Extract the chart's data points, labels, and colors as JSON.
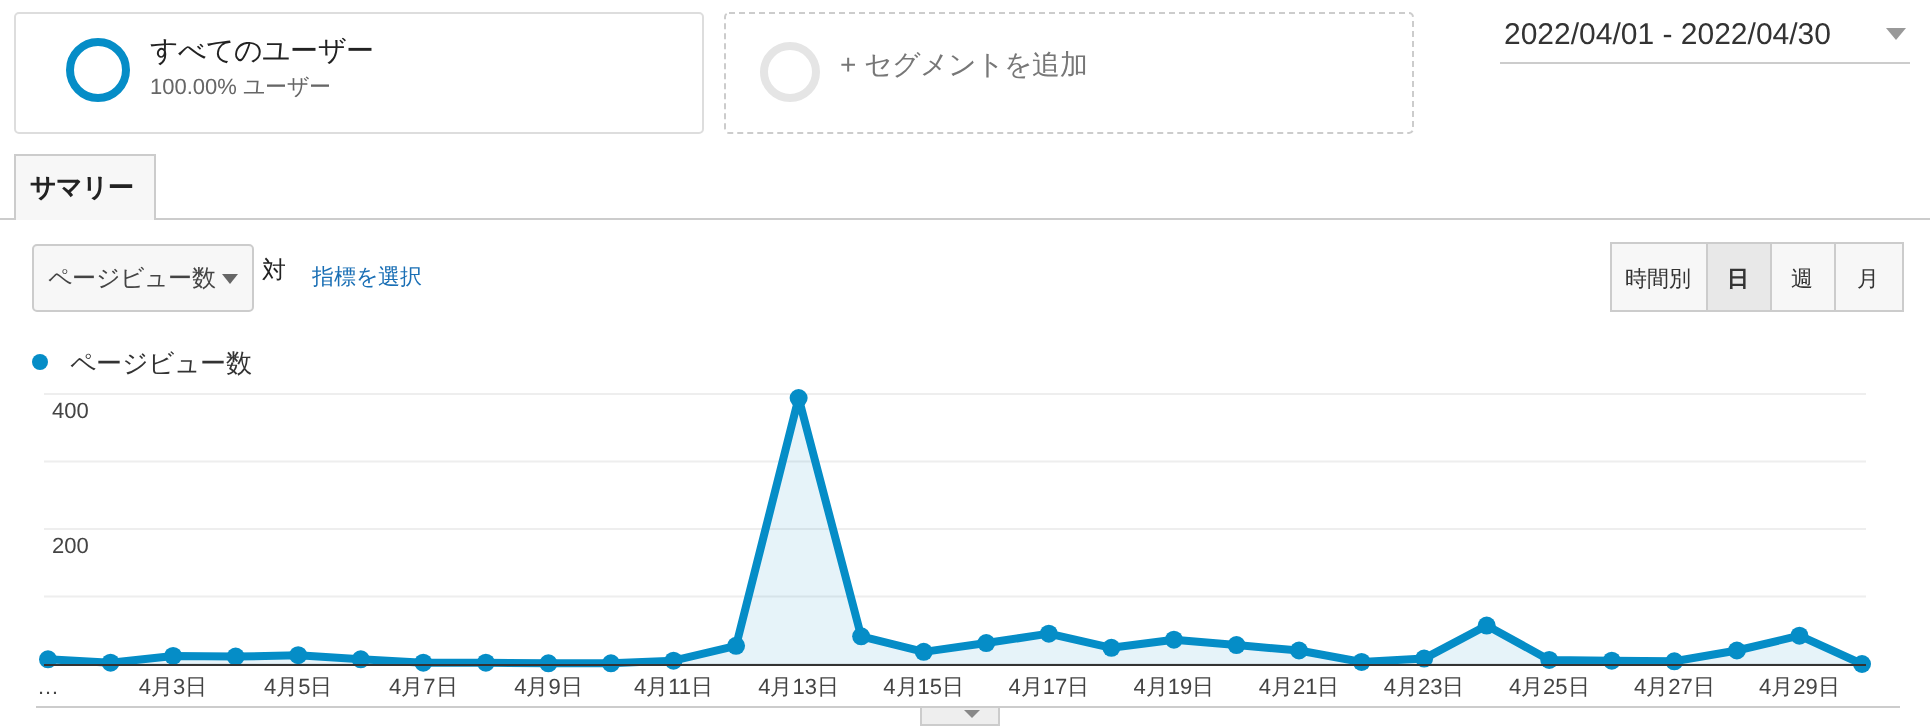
{
  "chart_data": {
    "type": "area",
    "categories": [
      "…",
      null,
      "4月3日",
      null,
      "4月5日",
      null,
      "4月7日",
      null,
      "4月9日",
      null,
      "4月11日",
      null,
      "4月13日",
      null,
      "4月15日",
      null,
      "4月17日",
      null,
      "4月19日",
      null,
      "4月21日",
      null,
      "4月23日",
      null,
      "4月25日",
      null,
      "4月27日",
      null,
      "4月29日",
      null
    ],
    "series": [
      {
        "name": "ページビュー数",
        "color": "#058dc7",
        "values": [
          7,
          2,
          12,
          11,
          13,
          7,
          2,
          2,
          1,
          1,
          5,
          27,
          394,
          41,
          18,
          31,
          45,
          24,
          36,
          28,
          20,
          3,
          8,
          57,
          6,
          5,
          4,
          20,
          42,
          0
        ]
      }
    ],
    "ylim": [
      0,
      400
    ],
    "yticks": [
      {
        "value": 0,
        "label": null
      },
      {
        "value": 100,
        "label": null
      },
      200,
      {
        "value": 300,
        "label": null
      },
      400
    ],
    "grid": "y",
    "legend": "top left",
    "marker": "circle",
    "annotations": [
      "すべてのユーザー",
      "100.00% ユーザー",
      "+ セグメントを追加",
      "2022/04/01 - 2022/04/30",
      "サマリー",
      "ページビュー数",
      "対",
      "指標を選択",
      "時間別",
      "日",
      "週",
      "月"
    ]
  }
}
